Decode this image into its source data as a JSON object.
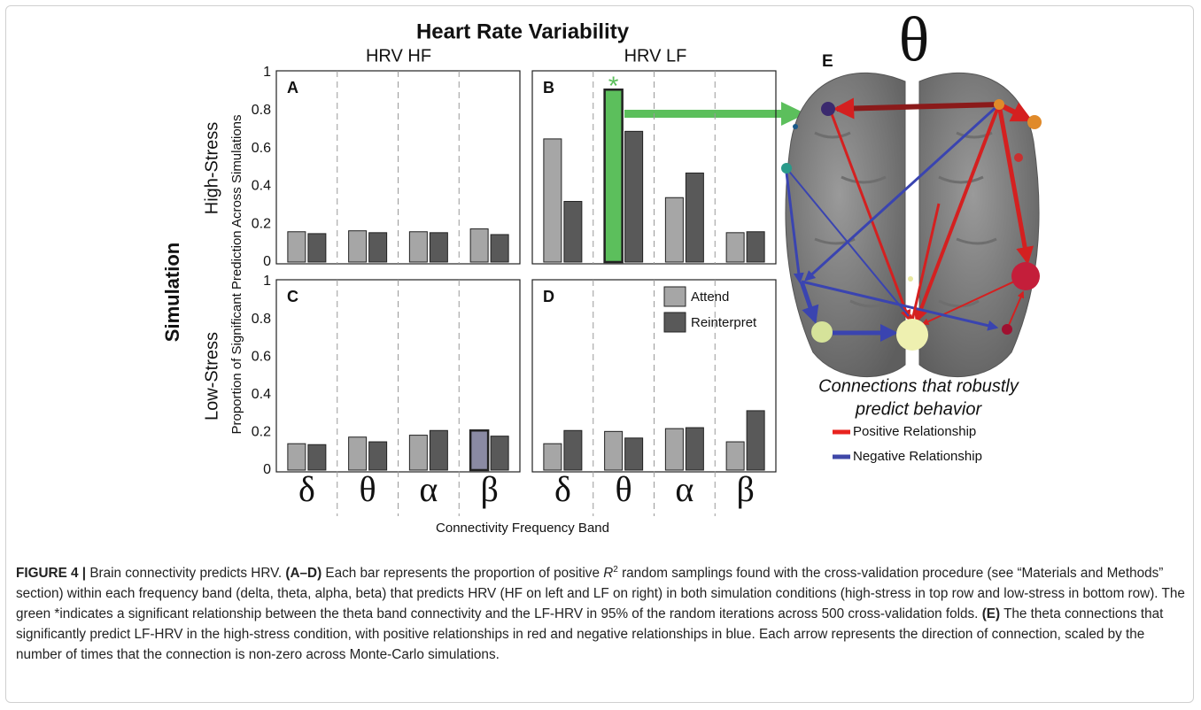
{
  "figure": {
    "title": "Heart Rate Variability",
    "columns": [
      "HRV HF",
      "HRV LF"
    ],
    "rows": [
      "High-Stress",
      "Low-Stress"
    ],
    "row_group": "Simulation",
    "y_label": "Proportion of Significant Prediction Across Simulations",
    "x_label": "Connectivity Frequency Band"
  },
  "chart_data": [
    {
      "type": "bar",
      "label": "A",
      "categories": [
        null,
        null,
        null,
        null
      ],
      "ylim": [
        0,
        1
      ],
      "yticks": [
        0,
        0.2,
        0.4,
        0.6,
        0.8,
        1
      ],
      "series": [
        {
          "color": "#a6a6a6",
          "values": [
            0.16,
            0.165,
            0.16,
            0.175
          ]
        },
        {
          "color": "#595959",
          "values": [
            0.15,
            0.155,
            0.155,
            0.145
          ]
        }
      ]
    },
    {
      "type": "bar",
      "label": "B",
      "categories": [
        null,
        null,
        null,
        null
      ],
      "ylim": [
        0,
        1
      ],
      "series": [
        {
          "color": "#a6a6a6",
          "colors": [
            "#a6a6a6",
            "#5cbf5c",
            "#a6a6a6",
            "#a6a6a6"
          ],
          "values": [
            0.65,
            0.91,
            0.34,
            0.155
          ]
        },
        {
          "color": "#595959",
          "values": [
            0.32,
            0.69,
            0.47,
            0.16
          ]
        }
      ],
      "annotations": [
        {
          "text": "*",
          "category": 1,
          "color": "#5cbf5c"
        }
      ]
    },
    {
      "type": "bar",
      "label": "C",
      "categories": [
        "δ",
        "θ",
        "α",
        "β"
      ],
      "ylim": [
        0,
        1
      ],
      "yticks": [
        0,
        0.2,
        0.4,
        0.6,
        0.8,
        1
      ],
      "series": [
        {
          "color": "#a6a6a6",
          "colors": [
            "#a6a6a6",
            "#a6a6a6",
            "#a6a6a6",
            "#8a8aa3"
          ],
          "values": [
            0.14,
            0.175,
            0.185,
            0.21
          ]
        },
        {
          "color": "#595959",
          "values": [
            0.135,
            0.15,
            0.21,
            0.18
          ]
        }
      ]
    },
    {
      "type": "bar",
      "label": "D",
      "categories": [
        "δ",
        "θ",
        "α",
        "β"
      ],
      "ylim": [
        0,
        1
      ],
      "legend": "upper right",
      "series": [
        {
          "name": "Attend",
          "color": "#a6a6a6",
          "values": [
            0.14,
            0.205,
            0.22,
            0.15
          ]
        },
        {
          "name": "Reinterpret",
          "color": "#595959",
          "values": [
            0.21,
            0.17,
            0.225,
            0.315
          ]
        }
      ]
    }
  ],
  "panel_e": {
    "label": "E",
    "band": "θ",
    "subtitle": [
      "Connections that robustly",
      "predict behavior"
    ],
    "legend": [
      {
        "name": "Positive Relationship",
        "color": "#e8231f"
      },
      {
        "name": "Negative Relationship",
        "color": "#3f48a8"
      }
    ]
  },
  "caption": [
    {
      "text": "FIGURE 4 | ",
      "style": "bold"
    },
    {
      "text": "Brain connectivity predicts HRV. ",
      "style": "normal"
    },
    {
      "text": "(A–D)",
      "style": "bold"
    },
    {
      "text": " Each bar represents the proportion of positive ",
      "style": "normal"
    },
    {
      "text": "R",
      "style": "italic"
    },
    {
      "text": "2",
      "style": "sup"
    },
    {
      "text": " random samplings found with the cross-validation procedure (see “Materials and Methods” section) within each frequency band (delta, theta, alpha, beta) that predicts HRV (HF on left and LF on right) in both simulation conditions (high-stress in top row and low-stress in bottom row). The green *indicates a significant relationship between the theta band connectivity and the LF-HRV in 95% of the random iterations across 500 cross-validation folds. ",
      "style": "normal"
    },
    {
      "text": "(E)",
      "style": "bold"
    },
    {
      "text": " The theta connections that significantly predict LF-HRV in the high-stress condition, with positive relationships in red and negative relationships in blue. Each arrow represents the direction of connection, scaled by the number of times that the connection is non-zero across Monte-Carlo simulations.",
      "style": "normal"
    }
  ]
}
